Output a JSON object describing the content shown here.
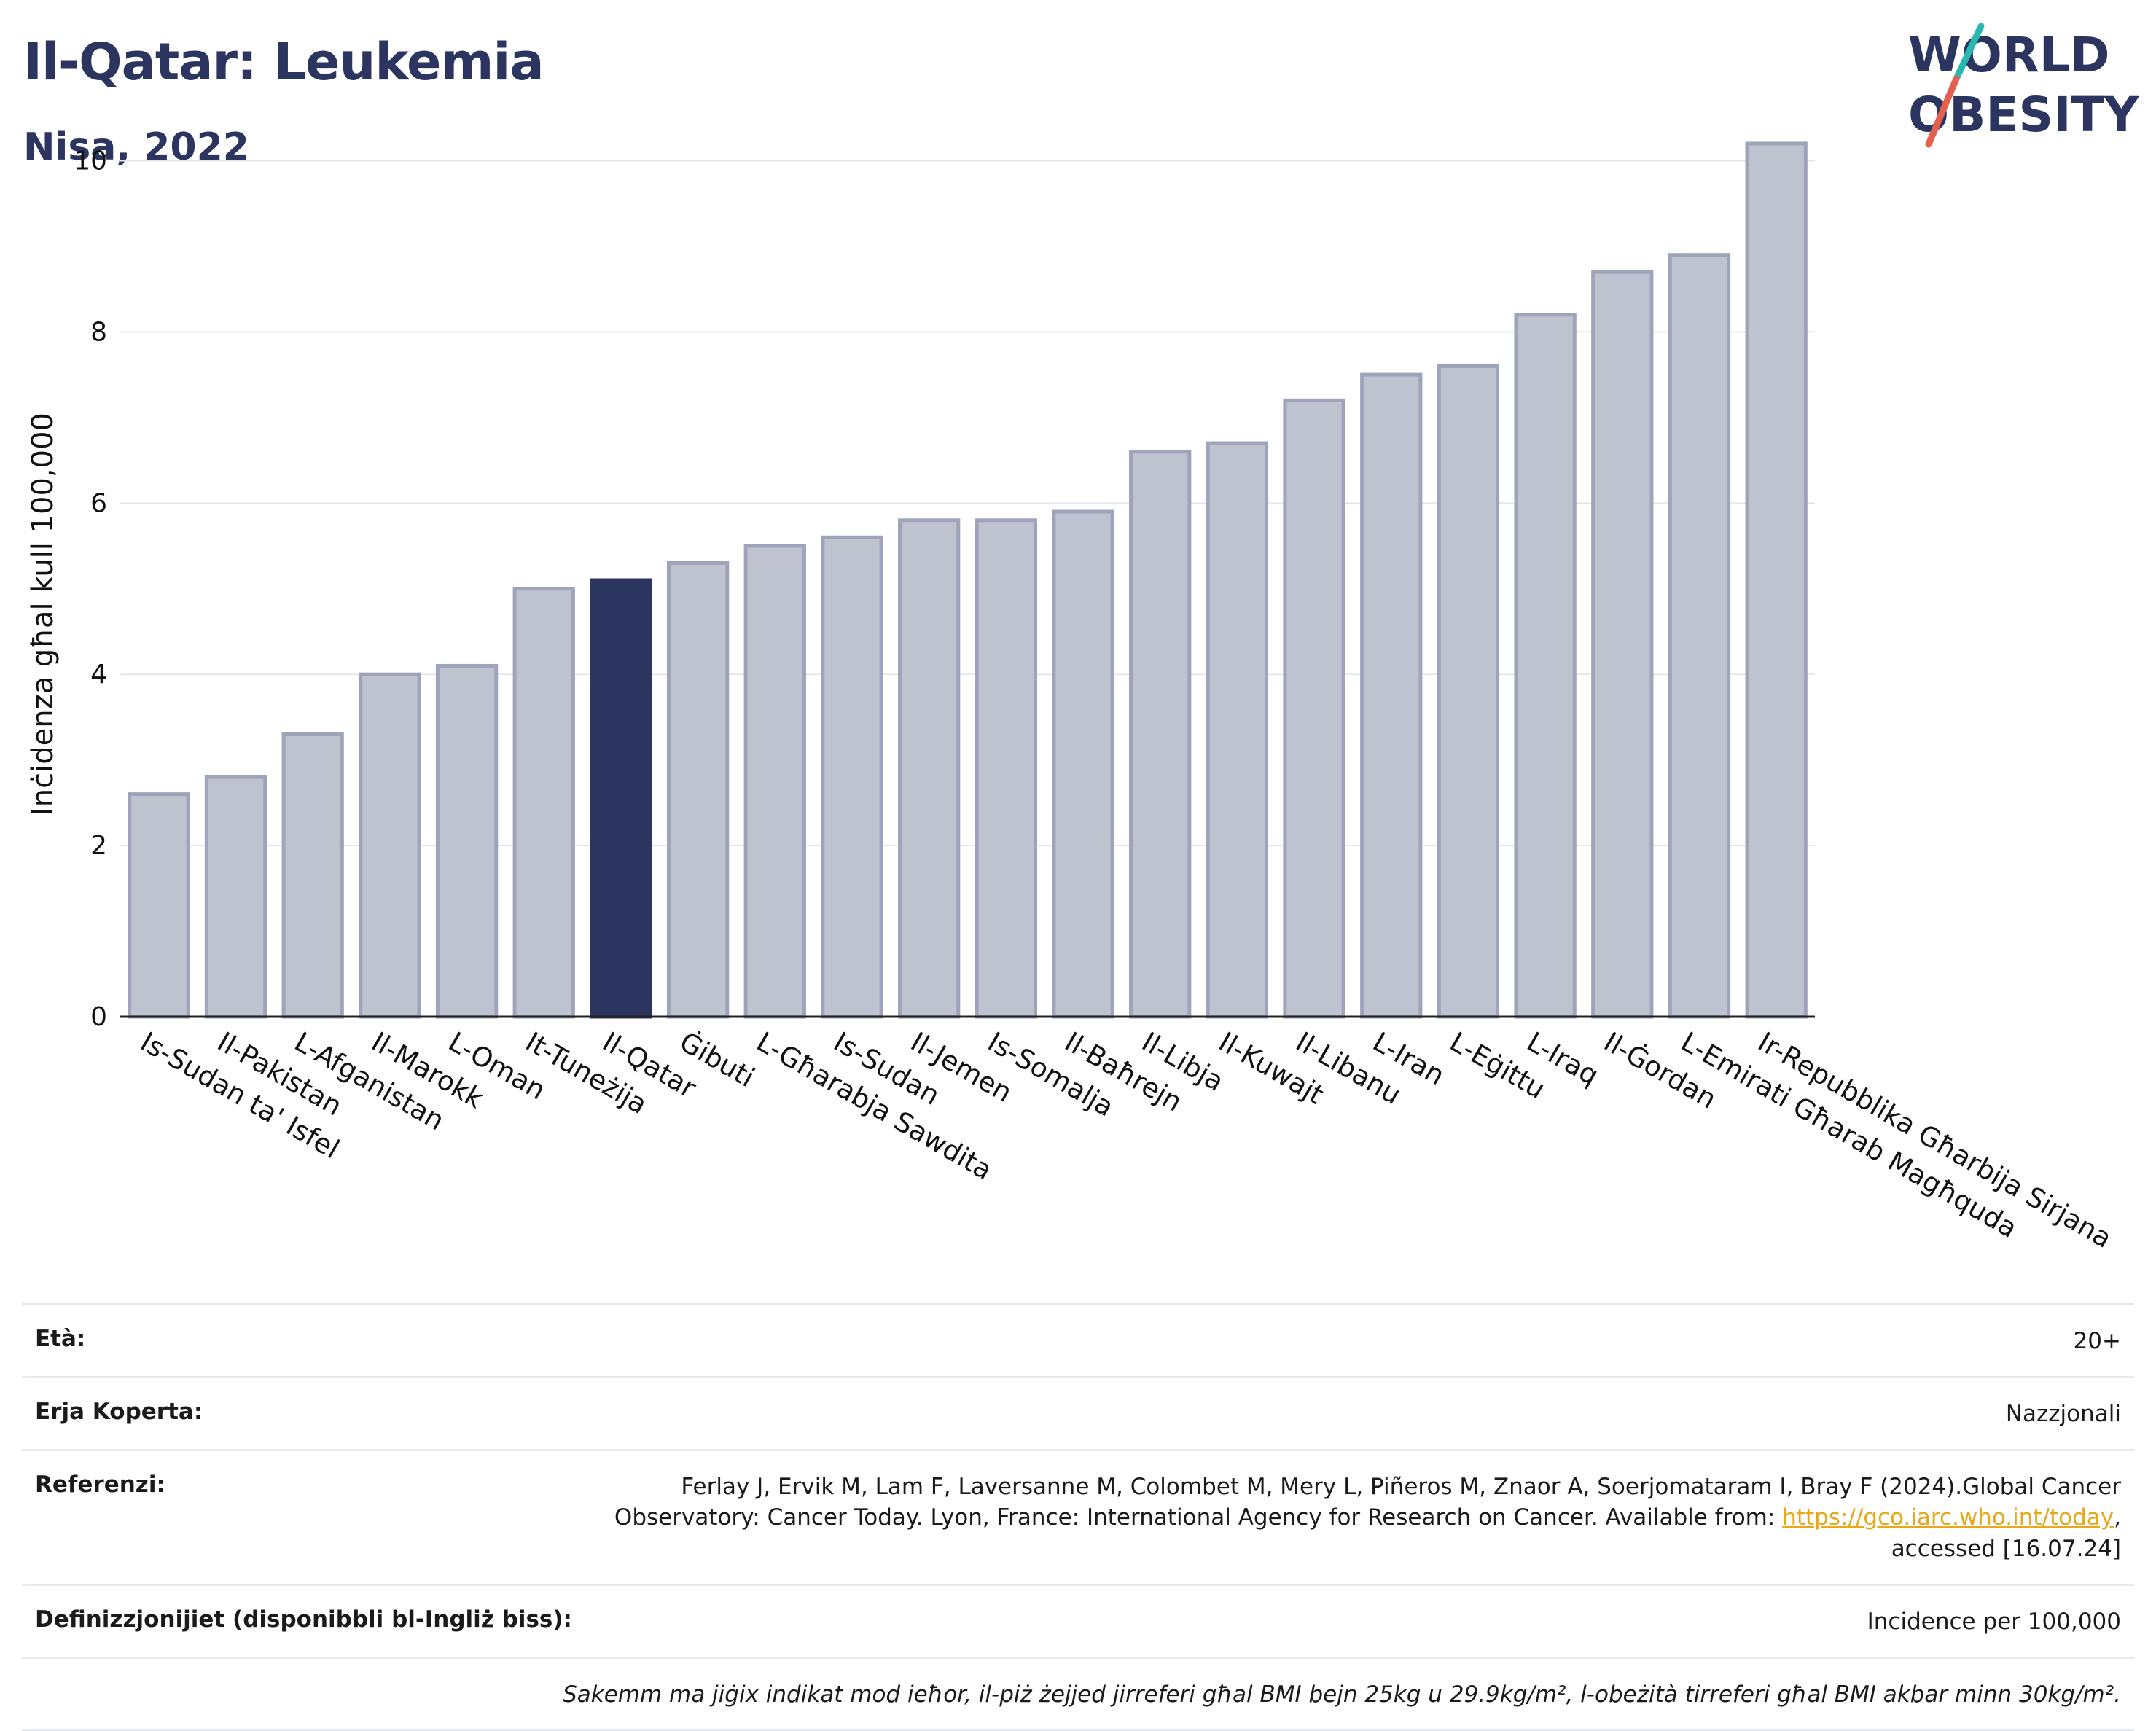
{
  "header": {
    "title": "Il-Qatar: Leukemia",
    "subtitle": "Nisa, 2022"
  },
  "logo": {
    "line1": "WORLD",
    "line2": "OBESITY",
    "accent_colors": [
      "#2ab7b0",
      "#e4604e"
    ],
    "text_color": "#2b355f"
  },
  "colors": {
    "highlight": "#2b355f",
    "bar_fill": "#bfc3d0",
    "bar_stroke": "#9ea4b9",
    "grid": "#e5e7ee"
  },
  "chart_data": {
    "type": "bar",
    "title": "Il-Qatar: Leukemia",
    "subtitle": "Nisa, 2022",
    "ylabel": "Inċidenza għal kull 100,000",
    "xlabel": "",
    "ylim": [
      0,
      10.6
    ],
    "yticks": [
      0,
      2,
      4,
      6,
      8,
      10
    ],
    "grid": true,
    "highlight_category": "Il-Qatar",
    "categories": [
      "Is-Sudan ta' Isfel",
      "Il-Pakistan",
      "L-Afganistan",
      "Il-Marokk",
      "L-Oman",
      "It-Tuneżija",
      "Il-Qatar",
      "Ġibuti",
      "L-Għarabja Sawdita",
      "Is-Sudan",
      "Il-Jemen",
      "Is-Somalja",
      "Il-Baħrejn",
      "Il-Libja",
      "Il-Kuwajt",
      "Il-Libanu",
      "L-Iran",
      "L-Eġittu",
      "L-Iraq",
      "Il-Ġordan",
      "L-Emirati Għarab Magħquda",
      "Ir-Repubblika Għarbija Sirjana"
    ],
    "values": [
      2.6,
      2.8,
      3.3,
      4.0,
      4.1,
      5.0,
      5.1,
      5.3,
      5.5,
      5.6,
      5.8,
      5.8,
      5.9,
      6.6,
      6.7,
      7.2,
      7.5,
      7.6,
      8.2,
      8.7,
      8.9,
      10.2
    ]
  },
  "meta": {
    "age_label": "Età:",
    "age_value": "20+",
    "area_label": "Erja Koperta:",
    "area_value": "Nazzjonali",
    "ref_label": "Referenzi:",
    "ref_text_1": "Ferlay J, Ervik M, Lam F, Laversanne M, Colombet M, Mery L, Piñeros M, Znaor A, Soerjomataram I, Bray F (2024).Global Cancer",
    "ref_text_2": "Observatory: Cancer Today. Lyon, France: International Agency for Research on Cancer. Available from: ",
    "ref_link": "https://gco.iarc.who.int/today",
    "ref_text_3": ",",
    "ref_text_4": "accessed [16.07.24]",
    "def_label": "Definizzjonijiet (disponibbli bl-Ingliż biss):",
    "def_value": "Incidence per 100,000",
    "note": "Sakemm ma jiġix indikat mod ieħor, il-piż żejjed jirreferi għal BMI bejn 25kg u 29.9kg/m², l-obeżità tirreferi għal BMI akbar minn 30kg/m²."
  }
}
